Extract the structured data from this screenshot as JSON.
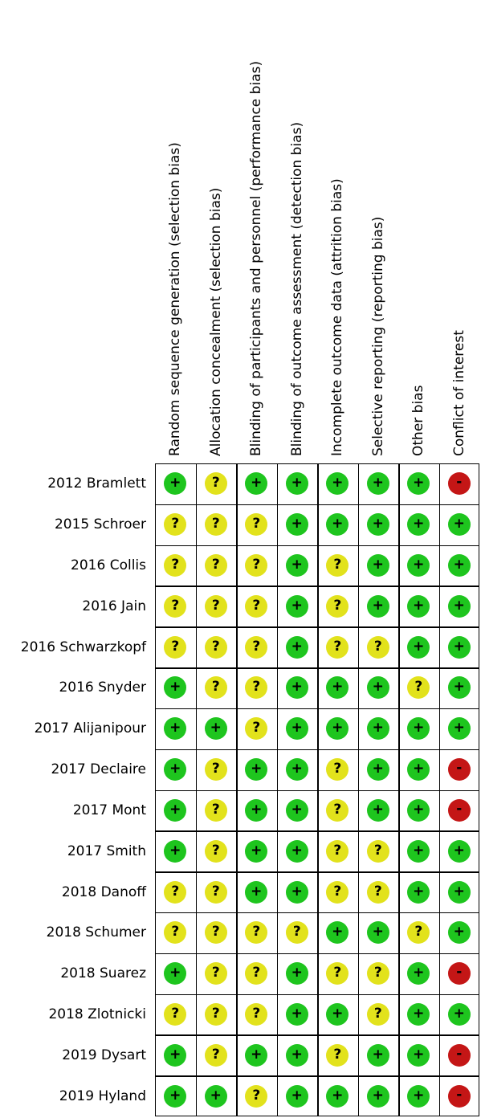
{
  "chart_data": {
    "type": "table",
    "title": "",
    "columns": [
      "Random sequence generation (selection bias)",
      "Allocation concealment (selection bias)",
      "Blinding of participants and personnel (performance bias)",
      "Blinding of outcome assessment (detection bias)",
      "Incomplete outcome data (attrition bias)",
      "Selective reporting (reporting bias)",
      "Other bias",
      "Conflict of interest"
    ],
    "rows": [
      {
        "study": "2012 Bramlett",
        "ratings": [
          "+",
          "?",
          "+",
          "+",
          "+",
          "+",
          "+",
          "-"
        ]
      },
      {
        "study": "2015 Schroer",
        "ratings": [
          "?",
          "?",
          "?",
          "+",
          "+",
          "+",
          "+",
          "+"
        ]
      },
      {
        "study": "2016 Collis",
        "ratings": [
          "?",
          "?",
          "?",
          "+",
          "?",
          "+",
          "+",
          "+"
        ]
      },
      {
        "study": "2016 Jain",
        "ratings": [
          "?",
          "?",
          "?",
          "+",
          "?",
          "+",
          "+",
          "+"
        ]
      },
      {
        "study": "2016 Schwarzkopf",
        "ratings": [
          "?",
          "?",
          "?",
          "+",
          "?",
          "?",
          "+",
          "+"
        ]
      },
      {
        "study": "2016 Snyder",
        "ratings": [
          "+",
          "?",
          "?",
          "+",
          "+",
          "+",
          "?",
          "+"
        ]
      },
      {
        "study": "2017 Alijanipour",
        "ratings": [
          "+",
          "+",
          "?",
          "+",
          "+",
          "+",
          "+",
          "+"
        ]
      },
      {
        "study": "2017 Declaire",
        "ratings": [
          "+",
          "?",
          "+",
          "+",
          "?",
          "+",
          "+",
          "-"
        ]
      },
      {
        "study": "2017 Mont",
        "ratings": [
          "+",
          "?",
          "+",
          "+",
          "?",
          "+",
          "+",
          "-"
        ]
      },
      {
        "study": "2017 Smith",
        "ratings": [
          "+",
          "?",
          "+",
          "+",
          "?",
          "?",
          "+",
          "+"
        ]
      },
      {
        "study": "2018 Danoff",
        "ratings": [
          "?",
          "?",
          "+",
          "+",
          "?",
          "?",
          "+",
          "+"
        ]
      },
      {
        "study": "2018 Schumer",
        "ratings": [
          "?",
          "?",
          "?",
          "?",
          "+",
          "+",
          "?",
          "+"
        ]
      },
      {
        "study": "2018 Suarez",
        "ratings": [
          "+",
          "?",
          "?",
          "+",
          "?",
          "?",
          "+",
          "-"
        ]
      },
      {
        "study": "2018 Zlotnicki",
        "ratings": [
          "?",
          "?",
          "?",
          "+",
          "+",
          "?",
          "+",
          "+"
        ]
      },
      {
        "study": "2019 Dysart",
        "ratings": [
          "+",
          "?",
          "+",
          "+",
          "?",
          "+",
          "+",
          "-"
        ]
      },
      {
        "study": "2019 Hyland",
        "ratings": [
          "+",
          "+",
          "?",
          "+",
          "+",
          "+",
          "+",
          "-"
        ]
      }
    ],
    "legend": [],
    "grid": true
  },
  "colors": {
    "low_risk": "#1ec51e",
    "unclear_risk": "#e2e21c",
    "high_risk": "#c41616"
  },
  "icons": {
    "+": "low-risk-icon",
    "?": "unclear-risk-icon",
    "-": "high-risk-icon"
  }
}
